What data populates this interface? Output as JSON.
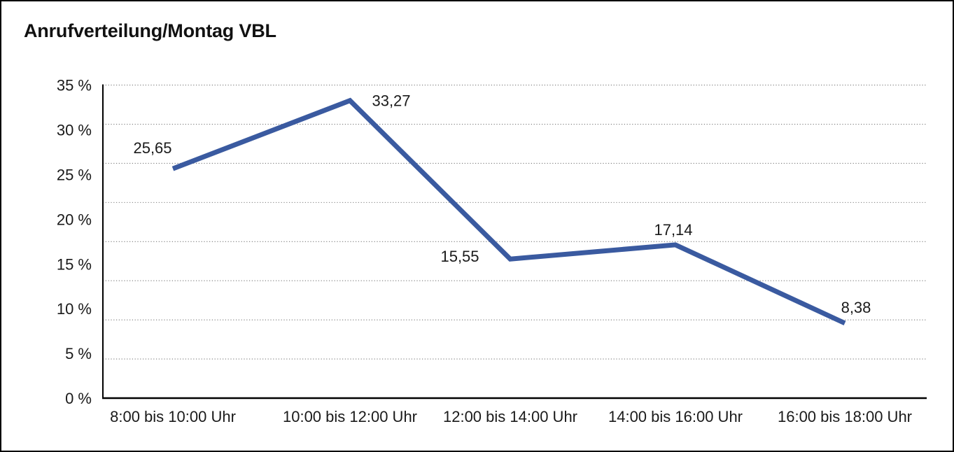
{
  "frame": {
    "background": "#ffffff",
    "border_color": "#000000"
  },
  "chart_data": {
    "type": "line",
    "title": "Anrufverteilung/Montag VBL",
    "categories": [
      "8:00 bis 10:00 Uhr",
      "10:00 bis 12:00 Uhr",
      "12:00 bis 14:00 Uhr",
      "14:00 bis 16:00 Uhr",
      "16:00 bis 18:00 Uhr"
    ],
    "values": [
      25.65,
      33.27,
      15.55,
      17.14,
      8.38
    ],
    "point_labels": [
      "25,65",
      "33,27",
      "15,55",
      "17,14",
      "8,38"
    ],
    "y_ticks": [
      "35 %",
      "30 %",
      "25 %",
      "20 %",
      "15 %",
      "10 %",
      "5 %",
      "0 %"
    ],
    "y_tick_values": [
      35,
      30,
      25,
      20,
      15,
      10,
      5,
      0
    ],
    "ylim": [
      0,
      35
    ],
    "xlabel": "",
    "ylabel": "",
    "legend": "none",
    "grid": "horizontal-dotted",
    "gridline_count": 8,
    "line_color": "#3A5AA0",
    "grid_color": "#7A7A7A",
    "axis_color": "#000000",
    "text_color": "#1A1A1A"
  }
}
